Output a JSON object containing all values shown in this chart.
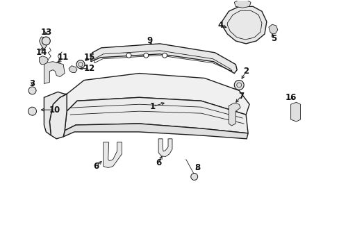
{
  "bg_color": "#ffffff",
  "line_color": "#1a1a1a",
  "label_color": "#111111",
  "fig_width": 4.89,
  "fig_height": 3.6,
  "dpi": 100,
  "lw_main": 1.0,
  "lw_thin": 0.6,
  "label_fontsize": 8.5
}
